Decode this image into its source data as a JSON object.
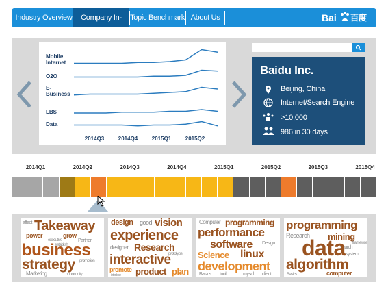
{
  "nav": {
    "items": [
      "Industry Overview",
      "Company In-depth",
      "Topic Benchmark",
      "About Us"
    ],
    "logo": {
      "latin": "Bai",
      "chinese": "百度"
    }
  },
  "chart": {
    "line_color": "#2b7cbf",
    "ylim": [
      0,
      100
    ],
    "series": [
      {
        "name": "Mobile Internet",
        "values": [
          82,
          82,
          82,
          82,
          83,
          83,
          84,
          86,
          98,
          95
        ]
      },
      {
        "name": "O2O",
        "values": [
          66,
          66,
          66,
          66,
          66,
          67,
          67,
          68,
          74,
          73
        ]
      },
      {
        "name": "E-Business",
        "values": [
          45,
          46,
          46,
          46,
          46,
          47,
          48,
          49,
          54,
          52
        ]
      },
      {
        "name": "LBS",
        "values": [
          24,
          24,
          24,
          25,
          25,
          25,
          26,
          26,
          28,
          26
        ]
      },
      {
        "name": "Data",
        "values": [
          10,
          10,
          10,
          10,
          9,
          10,
          10,
          11,
          14,
          9
        ]
      }
    ],
    "x_labels": [
      "2014Q3",
      "2014Q4",
      "2015Q1",
      "2015Q2"
    ]
  },
  "company": {
    "name": "Baidu Inc.",
    "location": "Beijing, China",
    "industry": "Internet/Search Engine",
    "employees": ">10,000",
    "activity": "986 in 30 days"
  },
  "timeline": {
    "labels": [
      "2014Q1",
      "2014Q2",
      "2014Q3",
      "2014Q4",
      "2015Q1",
      "2015Q2",
      "2015Q3",
      "2015Q4"
    ],
    "cells": [
      "#a6a6a6",
      "#a6a6a6",
      "#a6a6a6",
      "#9e7a16",
      "#f7b716",
      "#ee7b2c",
      "#f7b716",
      "#f7b716",
      "#f7b716",
      "#f7b716",
      "#f7b716",
      "#f7b716",
      "#f7b716",
      "#f7b716",
      "#5e5e5e",
      "#5e5e5e",
      "#5e5e5e",
      "#ee7b2c",
      "#5e5e5e",
      "#5e5e5e",
      "#5e5e5e",
      "#5e5e5e",
      "#5e5e5e"
    ]
  },
  "clouds": [
    {
      "words": [
        "affect",
        "Takeaway",
        "power",
        "grow",
        "executive",
        "establish",
        "Partner",
        "business",
        "strategy",
        "Marketing",
        "opportunity",
        "promotion"
      ]
    },
    {
      "words": [
        "design",
        "good",
        "vision",
        "experience",
        "Research",
        "designer",
        "interactive",
        "prototype",
        "interface",
        "promote",
        "product",
        "plan"
      ]
    },
    {
      "words": [
        "Computer",
        "programming",
        "performance",
        "software",
        "Design",
        "Science",
        "linux",
        "development",
        "Basics",
        "tool",
        "mysql",
        "client"
      ]
    },
    {
      "words": [
        "programming",
        "Research",
        "mining",
        "framework",
        "search",
        "data",
        "system",
        "algorithm",
        "Basics",
        "computer"
      ]
    }
  ]
}
